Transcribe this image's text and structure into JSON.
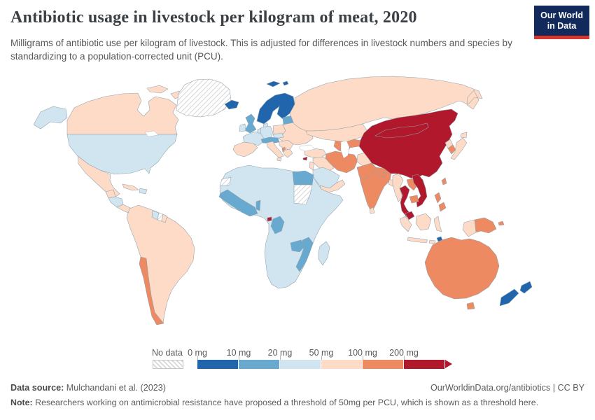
{
  "header": {
    "title": "Antibiotic usage in livestock per kilogram of meat, 2020",
    "subtitle": "Milligrams of antibiotic use per kilogram of livestock. This is adjusted for differences in livestock numbers and species by standardizing to a population-corrected unit (PCU)."
  },
  "logo": {
    "line1": "Our World",
    "line2": "in Data",
    "bg_color": "#12295b",
    "stripe_color": "#d8352f"
  },
  "legend": {
    "no_data_label": "No data",
    "stops": [
      "0 mg",
      "10 mg",
      "20 mg",
      "50 mg",
      "100 mg",
      "200 mg"
    ],
    "colors": [
      "#2166ac",
      "#67a9cf",
      "#d1e5f0",
      "#fddbc7",
      "#ee8a62",
      "#b2182b"
    ]
  },
  "footer": {
    "source_label": "Data source:",
    "source_value": " Mulchandani et al. (2023)",
    "link_text": "OurWorldinData.org/antibiotics",
    "separator": " | ",
    "license": "CC BY",
    "note_label": "Note:",
    "note_text": " Researchers working on antimicrobial resistance have proposed a threshold of 50mg per PCU, which is shown as a threshold here."
  },
  "map": {
    "bin_colors": {
      "b0": "#2166ac",
      "b1": "#67a9cf",
      "b2": "#d1e5f0",
      "b3": "#fddbc7",
      "b4": "#ee8a62",
      "b5": "#b2182b"
    },
    "fills": {
      "alaska": "b2",
      "canada": "b3",
      "arctic-islands": "b3",
      "greenland": "nd",
      "iceland": "b0",
      "usa": "b2",
      "mexico": "b3",
      "guatemala": "b3",
      "honduras-nicaragua": "b2",
      "costarica-panama": "b3",
      "cuba": "b3",
      "hispaniola": "b2",
      "south-america": "b3",
      "chile": "b4",
      "guyana": "b2",
      "suriname": "nd",
      "french-guiana": "b3",
      "scandinavia": "b0",
      "svalbard": "b0",
      "denmark": "b2",
      "uk": "b1",
      "ireland": "b2",
      "france": "b2",
      "germany": "b2",
      "benelux": "b2",
      "czech-slovakia": "b2",
      "austria-switzerland": "b1",
      "poland": "b3",
      "baltics": "b1",
      "east-europe": "b3",
      "iberia": "b3",
      "italy": "b3",
      "balkans": "b3",
      "albania": "b4",
      "greece": "b3",
      "cyprus": "b5",
      "russia": "b3",
      "kazakhstan": "b3",
      "uzbekistan": "b4",
      "turkmenistan": "b4",
      "kyrgyz-tajik": "b3",
      "turkey": "b3",
      "syria-iraq": "b3",
      "israel-jordan": "b3",
      "saudi": "b2",
      "yemen-oman": "b3",
      "iran": "b4",
      "afghanistan": "b3",
      "pakistan": "b4",
      "india": "b4",
      "nepal": "b4",
      "bangladesh": "b3",
      "srilanka": "b3",
      "myanmar": "b3",
      "thailand": "b5",
      "laos": "b4",
      "cambodia": "b4",
      "vietnam": "b5",
      "malaysia": "b5",
      "china": "b5",
      "north-korea": "b3",
      "south-korea": "b4",
      "japan": "b3",
      "taiwan": "b4",
      "philippines": "b4",
      "indonesia": "b3",
      "timor": "b0",
      "newguinea-west": "b3",
      "png": "b4",
      "australia": "b4",
      "tasmania": "b4",
      "nz": "b0",
      "africa": "b2",
      "western-sahara": "nd",
      "egypt": "b1",
      "sudan": "nd",
      "west-africa-coast": "b1",
      "benin": "b1",
      "eq-guinea": "b5",
      "congo": "b1",
      "zambia": "b1",
      "mozambique-malawi": "b1",
      "madagascar": "b2"
    }
  },
  "chart_data": {
    "type": "choropleth",
    "title": "Antibiotic usage in livestock per kilogram of meat, 2020",
    "unit": "mg per PCU",
    "year": 2020,
    "legend_position": "bottom",
    "bins": [
      {
        "range": "0-10 mg",
        "color": "#2166ac"
      },
      {
        "range": "10-20 mg",
        "color": "#67a9cf"
      },
      {
        "range": "20-50 mg",
        "color": "#d1e5f0"
      },
      {
        "range": "50-100 mg",
        "color": "#fddbc7"
      },
      {
        "range": "100-200 mg",
        "color": "#ee8a62"
      },
      {
        "range": "200+ mg",
        "color": "#b2182b"
      },
      {
        "range": "No data",
        "color": "hatched"
      }
    ],
    "countries_by_bin": {
      "0-10 mg": [
        "Norway",
        "Sweden",
        "Finland",
        "Iceland",
        "New Zealand",
        "Timor-Leste"
      ],
      "10-20 mg": [
        "United Kingdom",
        "Estonia",
        "Latvia",
        "Lithuania",
        "Austria",
        "Switzerland",
        "Egypt",
        "Senegal",
        "Guinea",
        "Sierra Leone",
        "Liberia",
        "Cote d'Ivoire",
        "Ghana",
        "Benin",
        "Congo",
        "Zambia",
        "Malawi",
        "Mozambique"
      ],
      "20-50 mg": [
        "United States",
        "France",
        "Germany",
        "Ireland",
        "Denmark",
        "Czechia",
        "Saudi Arabia",
        "Honduras",
        "Nicaragua",
        "Dominican Republic",
        "Guyana",
        "Morocco",
        "Algeria",
        "Libya",
        "Mali",
        "Niger",
        "Chad",
        "Nigeria",
        "Ethiopia",
        "Kenya",
        "Tanzania",
        "DR Congo",
        "Angola",
        "Namibia",
        "Botswana",
        "Zimbabwe",
        "South Africa",
        "Madagascar"
      ],
      "50-100 mg": [
        "Canada",
        "Mexico",
        "Cuba",
        "Brazil",
        "Argentina",
        "Colombia",
        "Venezuela",
        "Peru",
        "Bolivia",
        "Paraguay",
        "Uruguay",
        "Spain",
        "Portugal",
        "Italy",
        "Greece",
        "Poland",
        "Ukraine",
        "Romania",
        "Russia",
        "Kazakhstan",
        "Turkey",
        "Iraq",
        "Syria",
        "Yemen",
        "Oman",
        "Afghanistan",
        "Bangladesh",
        "Sri Lanka",
        "Myanmar",
        "North Korea",
        "Japan",
        "Indonesia"
      ],
      "100-200 mg": [
        "Chile",
        "Albania",
        "Iran",
        "Turkmenistan",
        "Uzbekistan",
        "Pakistan",
        "India",
        "Nepal",
        "Laos",
        "Cambodia",
        "South Korea",
        "Taiwan",
        "Philippines",
        "Papua New Guinea",
        "Australia"
      ],
      "200+ mg": [
        "China",
        "Mongolia",
        "Thailand",
        "Vietnam",
        "Malaysia",
        "Cyprus",
        "Equatorial Guinea"
      ],
      "No data": [
        "Greenland",
        "Sudan",
        "Western Sahara",
        "Suriname"
      ]
    }
  }
}
